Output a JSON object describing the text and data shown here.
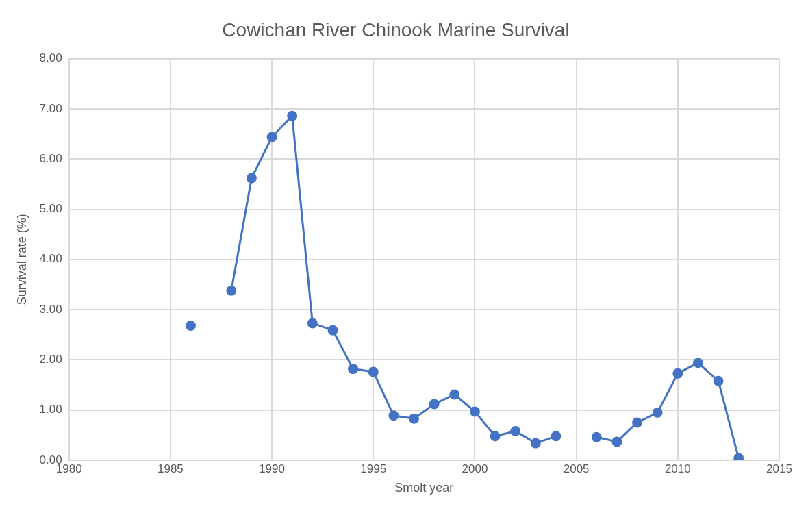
{
  "chart_data": {
    "type": "line",
    "title": "Cowichan River Chinook Marine Survival",
    "xlabel": "Smolt year",
    "ylabel": "Survival rate (%)",
    "x": [
      1986,
      1987,
      1988,
      1989,
      1990,
      1991,
      1992,
      1993,
      1994,
      1995,
      1996,
      1997,
      1998,
      1999,
      2000,
      2001,
      2002,
      2003,
      2004,
      2005,
      2006,
      2007,
      2008,
      2009,
      2010,
      2011,
      2012,
      2013
    ],
    "series": [
      {
        "color": "#4472c4",
        "values": [
          2.68,
          null,
          3.38,
          5.62,
          6.44,
          6.86,
          2.73,
          2.59,
          1.82,
          1.76,
          0.89,
          0.83,
          1.12,
          1.31,
          0.97,
          0.48,
          0.58,
          0.34,
          0.48,
          null,
          0.46,
          0.37,
          0.75,
          0.95,
          1.73,
          1.94,
          1.58,
          0.04
        ]
      }
    ],
    "xlim": [
      1980,
      2015
    ],
    "xticks": [
      1980,
      1985,
      1990,
      1995,
      2000,
      2005,
      2010,
      2015
    ],
    "ylim": [
      0,
      8
    ],
    "yticks": [
      {
        "value": 0,
        "label": "0.00"
      },
      {
        "value": 1,
        "label": "1.00"
      },
      {
        "value": 2,
        "label": "2.00"
      },
      {
        "value": 3,
        "label": "3.00"
      },
      {
        "value": 4,
        "label": "4.00"
      },
      {
        "value": 5,
        "label": "5.00"
      },
      {
        "value": 6,
        "label": "6.00"
      },
      {
        "value": 7,
        "label": "7.00"
      },
      {
        "value": 8,
        "label": "8.00"
      }
    ],
    "grid": true,
    "marker": "circle",
    "line_style": "solid"
  }
}
